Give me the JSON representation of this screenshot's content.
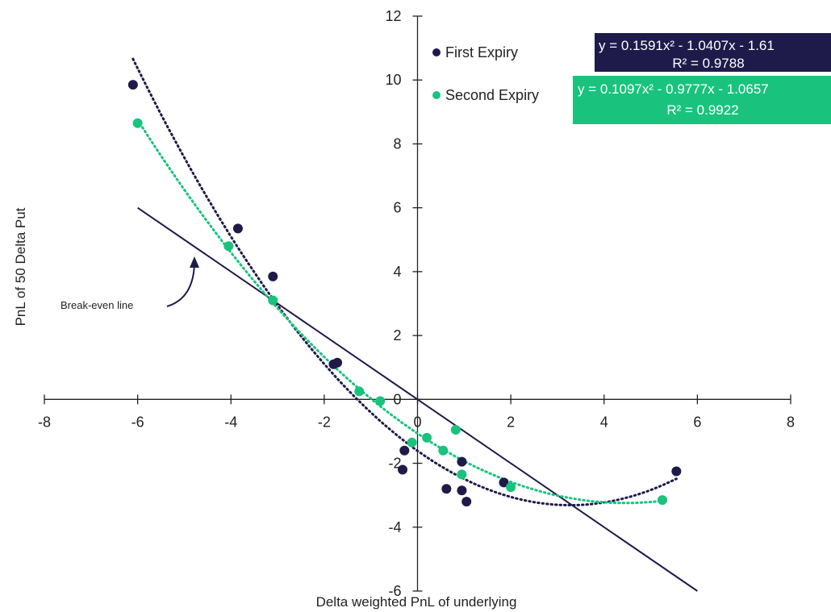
{
  "chart_data": {
    "type": "scatter",
    "title": "",
    "xlabel": "Delta weighted PnL of underlying",
    "ylabel": "PnL of 50 Delta Put",
    "xlim": [
      -8,
      8
    ],
    "ylim": [
      -6,
      12
    ],
    "x_ticks": [
      -8,
      -6,
      -4,
      -2,
      0,
      2,
      4,
      6,
      8
    ],
    "y_ticks": [
      -6,
      -4,
      -2,
      0,
      2,
      4,
      6,
      8,
      10,
      12
    ],
    "x_tick_labels": [
      "-8",
      "-6",
      "-4",
      "-2",
      "0",
      "2",
      "4",
      "6",
      "8"
    ],
    "y_tick_labels": [
      "-6",
      "-4",
      "-2",
      "0",
      "2",
      "4",
      "6",
      "8",
      "10",
      "12"
    ],
    "grid": false,
    "legend_position": "top-right",
    "series": [
      {
        "name": "First Expiry",
        "color": "#1e1b4b",
        "points": [
          [
            -6.1,
            9.85
          ],
          [
            -3.85,
            5.35
          ],
          [
            -3.1,
            3.85
          ],
          [
            -1.8,
            1.1
          ],
          [
            -1.72,
            1.15
          ],
          [
            -0.28,
            -1.6
          ],
          [
            -0.32,
            -2.2
          ],
          [
            0.95,
            -1.95
          ],
          [
            0.62,
            -2.8
          ],
          [
            0.95,
            -2.85
          ],
          [
            1.05,
            -3.2
          ],
          [
            1.85,
            -2.6
          ],
          [
            5.55,
            -2.25
          ]
        ],
        "trendline": {
          "type": "poly2",
          "coefficients": [
            0.1591,
            -1.0407,
            -1.61
          ],
          "x_range": [
            -6.1,
            5.55
          ],
          "equation": "y = 0.1591x² - 1.0407x - 1.61",
          "r2": "R² = 0.9788"
        }
      },
      {
        "name": "Second Expiry",
        "color": "#19c37d",
        "points": [
          [
            -6.0,
            8.65
          ],
          [
            -4.05,
            4.8
          ],
          [
            -3.1,
            3.1
          ],
          [
            -1.25,
            0.25
          ],
          [
            -0.8,
            -0.05
          ],
          [
            -0.12,
            -1.35
          ],
          [
            0.2,
            -1.2
          ],
          [
            0.55,
            -1.6
          ],
          [
            0.82,
            -0.95
          ],
          [
            0.95,
            -2.35
          ],
          [
            2.0,
            -2.75
          ],
          [
            5.25,
            -3.15
          ]
        ],
        "trendline": {
          "type": "poly2",
          "coefficients": [
            0.1097,
            -0.9777,
            -1.0657
          ],
          "x_range": [
            -6.0,
            5.25
          ],
          "equation": "y = 0.1097x² - 0.9777x - 1.0657",
          "r2": "R² = 0.9922"
        }
      }
    ],
    "breakeven_line": {
      "slope": -1,
      "intercept": 0,
      "x_range": [
        -6,
        6
      ],
      "color": "#1e1b4b"
    },
    "annotations": [
      {
        "text": "Break-even line"
      }
    ]
  }
}
